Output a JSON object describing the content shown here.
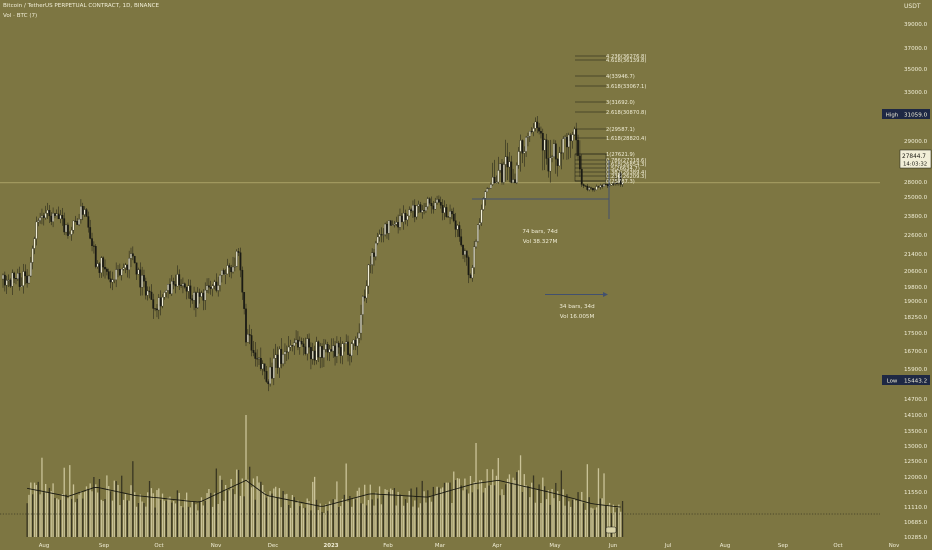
{
  "header": {
    "title": "Bitcoin / TetherUS PERPETUAL CONTRACT, 1D, BINANCE",
    "volume_label": "Vol · BTC (7)"
  },
  "chart_data": {
    "type": "candlestick",
    "symbol": "BTCUSDT.P",
    "timeframe": "1D",
    "axis_title": "USDT",
    "price_ticks": [
      "39000.0",
      "37000.0",
      "35000.0",
      "33000.0",
      "31059.0",
      "29000.0",
      "28000.0",
      "25000.0",
      "23800.0",
      "22600.0",
      "21400.0",
      "20600.0",
      "19800.0",
      "19000.0",
      "18250.0",
      "17500.0",
      "16700.0",
      "15900.0",
      "15443.2",
      "14700.0",
      "14100.0",
      "13500.0",
      "13000.0",
      "12500.0",
      "12000.0",
      "11550.0",
      "11110.0",
      "10685.0",
      "10285.0"
    ],
    "month_ticks": [
      "Aug",
      "Sep",
      "Oct",
      "Nov",
      "Dec",
      "2023",
      "Feb",
      "Mar",
      "Apr",
      "May",
      "Jun",
      "Jul",
      "Aug",
      "Sep",
      "Oct",
      "Nov"
    ],
    "price_path": [
      [
        "2022-07-14",
        20200
      ],
      [
        "2022-07-20",
        23800
      ],
      [
        "2022-07-30",
        23700
      ],
      [
        "2022-08-06",
        22800
      ],
      [
        "2022-08-14",
        24400
      ],
      [
        "2022-08-20",
        21200
      ],
      [
        "2022-08-29",
        20000
      ],
      [
        "2022-09-09",
        21400
      ],
      [
        "2022-09-13",
        20200
      ],
      [
        "2022-09-21",
        18900
      ],
      [
        "2022-10-05",
        20200
      ],
      [
        "2022-10-13",
        19100
      ],
      [
        "2022-10-25",
        20000
      ],
      [
        "2022-10-29",
        20700
      ],
      [
        "2022-11-05",
        21200
      ],
      [
        "2022-11-09",
        17500
      ],
      [
        "2022-11-14",
        16200
      ],
      [
        "2022-11-21",
        15700
      ],
      [
        "2022-12-05",
        17200
      ],
      [
        "2022-12-16",
        16700
      ],
      [
        "2022-12-30",
        16600
      ],
      [
        "2023-01-08",
        17200
      ],
      [
        "2023-01-14",
        20700
      ],
      [
        "2023-01-21",
        22800
      ],
      [
        "2023-02-01",
        23700
      ],
      [
        "2023-02-16",
        24700
      ],
      [
        "2023-02-21",
        24400
      ],
      [
        "2023-03-02",
        23300
      ],
      [
        "2023-03-10",
        20300
      ],
      [
        "2023-03-17",
        25200
      ],
      [
        "2023-03-22",
        28200
      ],
      [
        "2023-04-04",
        28200
      ],
      [
        "2023-04-10",
        29500
      ],
      [
        "2023-04-14",
        30700
      ],
      [
        "2023-04-20",
        28400
      ],
      [
        "2023-04-26",
        28600
      ],
      [
        "2023-05-05",
        29500
      ],
      [
        "2023-05-12",
        26500
      ],
      [
        "2023-05-18",
        26900
      ],
      [
        "2023-05-28",
        27844.7
      ]
    ],
    "volume_path": [
      [
        "2022-07-14",
        11660
      ],
      [
        "2022-08-05",
        11420
      ],
      [
        "2022-08-20",
        11700
      ],
      [
        "2022-09-10",
        11450
      ],
      [
        "2022-10-15",
        11250
      ],
      [
        "2022-11-09",
        11900
      ],
      [
        "2022-11-20",
        11450
      ],
      [
        "2022-12-20",
        11120
      ],
      [
        "2023-01-15",
        11500
      ],
      [
        "2023-02-15",
        11400
      ],
      [
        "2023-03-12",
        11800
      ],
      [
        "2023-03-25",
        11900
      ],
      [
        "2023-04-25",
        11500
      ],
      [
        "2023-05-15",
        11200
      ],
      [
        "2023-05-31",
        11100
      ]
    ],
    "volume_spikes": [
      [
        "2022-11-09",
        14100
      ],
      [
        "2023-03-13",
        13100
      ],
      [
        "2023-03-25",
        12600
      ],
      [
        "2023-05-12",
        12400
      ],
      [
        "2022-08-19",
        12000
      ]
    ],
    "last_price": {
      "value": 27844.7,
      "label": "27844.7",
      "countdown": "14:03:32"
    },
    "high": {
      "label": "High",
      "value": "31059.0"
    },
    "low": {
      "label": "Low",
      "value": "15443.2"
    },
    "fib_extension": [
      {
        "label": "4.236(36276.8)"
      },
      {
        "label": "4.618(36139.8)"
      },
      {
        "label": "4(33946.7)"
      },
      {
        "label": "3.618(33067.1)"
      },
      {
        "label": "3(31692.0)"
      },
      {
        "label": "2.618(30870.8)"
      },
      {
        "label": "2(29587.1)"
      },
      {
        "label": "1.618(28820.4)"
      },
      {
        "label": "1(27621.9)"
      },
      {
        "label": "0.786(27218.6)"
      },
      {
        "label": "0.618(26854.3)"
      },
      {
        "label": "0.5(26634.7)"
      },
      {
        "label": "0.382(26389.4)"
      },
      {
        "label": "0.236(26209.3)"
      },
      {
        "label": "0(25787.3)"
      }
    ],
    "measures": [
      {
        "bars": "74 bars, 74d",
        "vol": "Vol 38.327M"
      },
      {
        "bars": "34 bars, 34d",
        "vol": "Vol 16.005M"
      }
    ],
    "colors": {
      "background": "#7d7642",
      "up": "#f2efd8",
      "down": "#1a1a14",
      "text": "#f2efd8",
      "tool": "#42506e",
      "label_bg": "#1e2844"
    }
  }
}
